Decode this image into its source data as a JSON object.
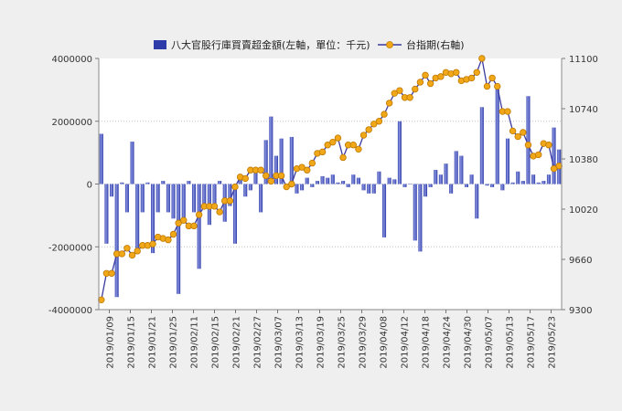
{
  "chart_data": {
    "type": "bar+line",
    "title": "",
    "legend": {
      "placement": "top",
      "bar_label": "八大官股行庫買賣超金額(左軸，單位：千元)",
      "line_label": "台指期(右軸)"
    },
    "y_left": {
      "min": -4000000,
      "max": 4000000,
      "ticks": [
        "4000000",
        "2000000",
        "0",
        "-2000000",
        "-4000000"
      ]
    },
    "y_right": {
      "min": 9300,
      "max": 11100,
      "ticks": [
        "11100",
        "10740",
        "10380",
        "10020",
        "9660",
        "9300"
      ]
    },
    "x_tick_labels": [
      "2019/01/09",
      "2019/01/15",
      "2019/01/21",
      "2019/01/25",
      "2019/02/11",
      "2019/02/15",
      "2019/02/21",
      "2019/02/27",
      "2019/03/07",
      "2019/03/13",
      "2019/03/19",
      "2019/03/25",
      "2019/03/29",
      "2019/04/08",
      "2019/04/12",
      "2019/04/18",
      "2019/04/24",
      "2019/04/30",
      "2019/05/07",
      "2019/05/13",
      "2019/05/17",
      "2019/05/23"
    ],
    "grid": "horizontal dotted",
    "colors": {
      "bar": "#2d3ca8",
      "bar_highlight": "#8a94e0",
      "line": "#3a3aa0",
      "marker": "#f0a818",
      "marker_edge": "#c07800"
    },
    "series": [
      {
        "name": "八大官股行庫買賣超金額(左軸，單位：千元)",
        "type": "bar",
        "values": [
          1600000,
          -1900000,
          -400000,
          -3600000,
          50000,
          -900000,
          1350000,
          -2200000,
          -900000,
          50000,
          -2200000,
          -900000,
          100000,
          -900000,
          -1100000,
          -3500000,
          -1200000,
          100000,
          -900000,
          -2700000,
          -800000,
          -1300000,
          -700000,
          100000,
          -1200000,
          -700000,
          -1900000,
          300000,
          -400000,
          -200000,
          400000,
          -900000,
          1400000,
          2150000,
          900000,
          1450000,
          -100000,
          1500000,
          -300000,
          -200000,
          200000,
          -100000,
          100000,
          250000,
          200000,
          300000,
          50000,
          100000,
          -100000,
          300000,
          200000,
          -200000,
          -300000,
          -300000,
          400000,
          -1700000,
          200000,
          150000,
          2000000,
          -100000,
          0,
          -1800000,
          -2150000,
          -400000,
          -100000,
          450000,
          300000,
          650000,
          -300000,
          1050000,
          900000,
          -100000,
          300000,
          -1100000,
          2450000,
          -50000,
          -100000,
          3150000,
          -200000,
          1450000,
          50000,
          400000,
          100000,
          2800000,
          300000,
          50000,
          100000,
          300000,
          1800000,
          1100000
        ]
      },
      {
        "name": "台指期(右軸)",
        "type": "line",
        "values": [
          9370,
          9560,
          9560,
          9700,
          9700,
          9740,
          9690,
          9720,
          9760,
          9760,
          9770,
          9820,
          9810,
          9800,
          9840,
          9920,
          9940,
          9900,
          9900,
          9980,
          10040,
          10040,
          10040,
          10000,
          10080,
          10080,
          10180,
          10250,
          10240,
          10300,
          10300,
          10300,
          10260,
          10220,
          10260,
          10260,
          10180,
          10200,
          10310,
          10320,
          10300,
          10350,
          10420,
          10430,
          10480,
          10500,
          10530,
          10390,
          10480,
          10480,
          10450,
          10550,
          10590,
          10630,
          10650,
          10700,
          10780,
          10850,
          10870,
          10820,
          10820,
          10880,
          10930,
          10980,
          10920,
          10960,
          10970,
          11000,
          10990,
          11000,
          10940,
          10950,
          10960,
          11000,
          11100,
          10900,
          10960,
          10900,
          10720,
          10720,
          10580,
          10540,
          10570,
          10480,
          10400,
          10410,
          10490,
          10480,
          10310,
          10330
        ]
      }
    ]
  }
}
